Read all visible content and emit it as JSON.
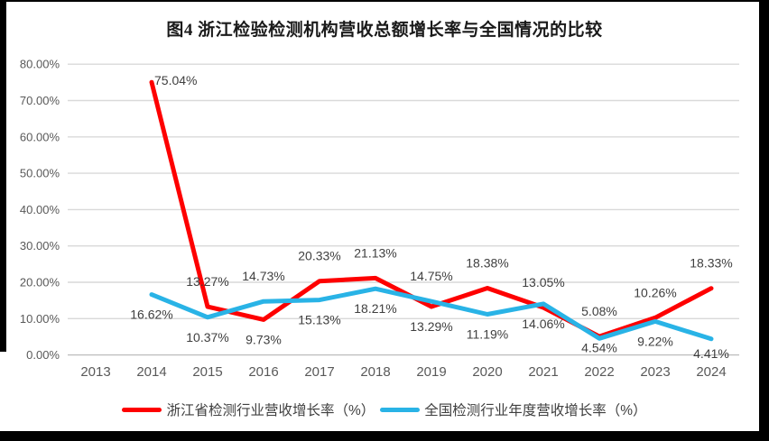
{
  "title": "图4  浙江检验检测机构营收总额增长率与全国情况的比较",
  "colors": {
    "background": "#ffffff",
    "frame": "#000000",
    "grid": "#d9d9d9",
    "axis_line": "#bfbfbf",
    "axis_text": "#595959",
    "label_text": "#3f3f3f",
    "title_text": "#1a1a1a",
    "zhejiang_red": "#fe0000",
    "national_blue": "#29b3e6"
  },
  "chart_data": {
    "type": "line",
    "title": "图4  浙江检验检测机构营收总额增长率与全国情况的比较",
    "x": [
      "2013",
      "2014",
      "2015",
      "2016",
      "2017",
      "2018",
      "2019",
      "2020",
      "2021",
      "2022",
      "2023",
      "2024"
    ],
    "series": [
      {
        "name": "浙江省检测行业营收增长率（%）",
        "color": "#fe0000",
        "values": [
          null,
          75.04,
          13.27,
          9.73,
          20.33,
          21.13,
          13.29,
          18.38,
          13.05,
          5.08,
          10.26,
          18.33
        ],
        "point_labels": [
          null,
          "75.04%",
          "13.27%",
          "9.73%",
          "20.33%",
          "21.13%",
          "13.29%",
          "18.38%",
          "13.05%",
          "5.08%",
          "10.26%",
          "18.33%"
        ],
        "label_sides": [
          null,
          "right",
          "above",
          "below",
          "above",
          "above",
          "below",
          "above",
          "above",
          "above",
          "above",
          "above"
        ],
        "label_dy_overrides": {}
      },
      {
        "name": "全国检测行业年度营收增长率（%）",
        "color": "#29b3e6",
        "values": [
          null,
          16.62,
          10.37,
          14.73,
          15.13,
          18.21,
          14.75,
          11.19,
          14.06,
          4.54,
          9.22,
          4.41
        ],
        "point_labels": [
          null,
          "16.62%",
          "10.37%",
          "14.73%",
          "15.13%",
          "18.21%",
          "14.75%",
          "11.19%",
          "14.06%",
          "4.54%",
          "9.22%",
          "4.41%"
        ],
        "label_sides": [
          null,
          "below",
          "below",
          "above",
          "below",
          "below",
          "above",
          "below",
          "below",
          "below",
          "below",
          "below"
        ],
        "label_dy_overrides": {
          "9": 15,
          "11": 21
        }
      }
    ],
    "ylim": [
      0,
      80
    ],
    "y_tick_step": 10,
    "y_ticks": [
      "0.00%",
      "10.00%",
      "20.00%",
      "30.00%",
      "40.00%",
      "50.00%",
      "60.00%",
      "70.00%",
      "80.00%"
    ],
    "grid": true,
    "legend_position": "bottom"
  }
}
